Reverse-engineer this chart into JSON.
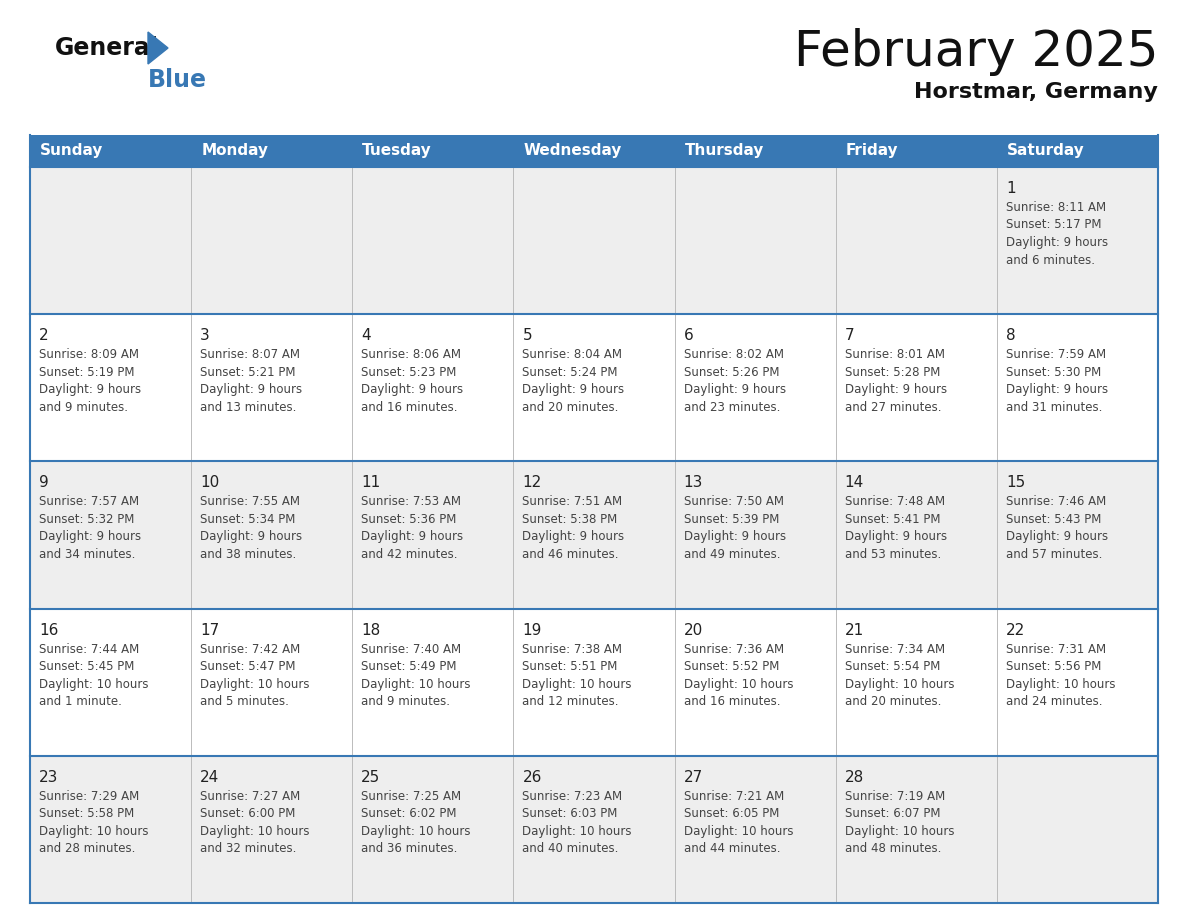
{
  "title": "February 2025",
  "subtitle": "Horstmar, Germany",
  "header_bg_color": "#3878b4",
  "header_text_color": "#ffffff",
  "day_names": [
    "Sunday",
    "Monday",
    "Tuesday",
    "Wednesday",
    "Thursday",
    "Friday",
    "Saturday"
  ],
  "row_bg_colors": [
    "#eeeeee",
    "#ffffff",
    "#eeeeee",
    "#ffffff",
    "#eeeeee"
  ],
  "cell_border_color": "#3878b4",
  "outer_border_color": "#3878b4",
  "cell_divider_color": "#bbbbbb",
  "date_text_color": "#222222",
  "info_text_color": "#444444",
  "calendar_data": [
    [
      {
        "day": null,
        "sunrise": null,
        "sunset": null,
        "daylight": null
      },
      {
        "day": null,
        "sunrise": null,
        "sunset": null,
        "daylight": null
      },
      {
        "day": null,
        "sunrise": null,
        "sunset": null,
        "daylight": null
      },
      {
        "day": null,
        "sunrise": null,
        "sunset": null,
        "daylight": null
      },
      {
        "day": null,
        "sunrise": null,
        "sunset": null,
        "daylight": null
      },
      {
        "day": null,
        "sunrise": null,
        "sunset": null,
        "daylight": null
      },
      {
        "day": 1,
        "sunrise": "8:11 AM",
        "sunset": "5:17 PM",
        "daylight": "9 hours and 6 minutes."
      }
    ],
    [
      {
        "day": 2,
        "sunrise": "8:09 AM",
        "sunset": "5:19 PM",
        "daylight": "9 hours and 9 minutes."
      },
      {
        "day": 3,
        "sunrise": "8:07 AM",
        "sunset": "5:21 PM",
        "daylight": "9 hours and 13 minutes."
      },
      {
        "day": 4,
        "sunrise": "8:06 AM",
        "sunset": "5:23 PM",
        "daylight": "9 hours and 16 minutes."
      },
      {
        "day": 5,
        "sunrise": "8:04 AM",
        "sunset": "5:24 PM",
        "daylight": "9 hours and 20 minutes."
      },
      {
        "day": 6,
        "sunrise": "8:02 AM",
        "sunset": "5:26 PM",
        "daylight": "9 hours and 23 minutes."
      },
      {
        "day": 7,
        "sunrise": "8:01 AM",
        "sunset": "5:28 PM",
        "daylight": "9 hours and 27 minutes."
      },
      {
        "day": 8,
        "sunrise": "7:59 AM",
        "sunset": "5:30 PM",
        "daylight": "9 hours and 31 minutes."
      }
    ],
    [
      {
        "day": 9,
        "sunrise": "7:57 AM",
        "sunset": "5:32 PM",
        "daylight": "9 hours and 34 minutes."
      },
      {
        "day": 10,
        "sunrise": "7:55 AM",
        "sunset": "5:34 PM",
        "daylight": "9 hours and 38 minutes."
      },
      {
        "day": 11,
        "sunrise": "7:53 AM",
        "sunset": "5:36 PM",
        "daylight": "9 hours and 42 minutes."
      },
      {
        "day": 12,
        "sunrise": "7:51 AM",
        "sunset": "5:38 PM",
        "daylight": "9 hours and 46 minutes."
      },
      {
        "day": 13,
        "sunrise": "7:50 AM",
        "sunset": "5:39 PM",
        "daylight": "9 hours and 49 minutes."
      },
      {
        "day": 14,
        "sunrise": "7:48 AM",
        "sunset": "5:41 PM",
        "daylight": "9 hours and 53 minutes."
      },
      {
        "day": 15,
        "sunrise": "7:46 AM",
        "sunset": "5:43 PM",
        "daylight": "9 hours and 57 minutes."
      }
    ],
    [
      {
        "day": 16,
        "sunrise": "7:44 AM",
        "sunset": "5:45 PM",
        "daylight": "10 hours and 1 minute."
      },
      {
        "day": 17,
        "sunrise": "7:42 AM",
        "sunset": "5:47 PM",
        "daylight": "10 hours and 5 minutes."
      },
      {
        "day": 18,
        "sunrise": "7:40 AM",
        "sunset": "5:49 PM",
        "daylight": "10 hours and 9 minutes."
      },
      {
        "day": 19,
        "sunrise": "7:38 AM",
        "sunset": "5:51 PM",
        "daylight": "10 hours and 12 minutes."
      },
      {
        "day": 20,
        "sunrise": "7:36 AM",
        "sunset": "5:52 PM",
        "daylight": "10 hours and 16 minutes."
      },
      {
        "day": 21,
        "sunrise": "7:34 AM",
        "sunset": "5:54 PM",
        "daylight": "10 hours and 20 minutes."
      },
      {
        "day": 22,
        "sunrise": "7:31 AM",
        "sunset": "5:56 PM",
        "daylight": "10 hours and 24 minutes."
      }
    ],
    [
      {
        "day": 23,
        "sunrise": "7:29 AM",
        "sunset": "5:58 PM",
        "daylight": "10 hours and 28 minutes."
      },
      {
        "day": 24,
        "sunrise": "7:27 AM",
        "sunset": "6:00 PM",
        "daylight": "10 hours and 32 minutes."
      },
      {
        "day": 25,
        "sunrise": "7:25 AM",
        "sunset": "6:02 PM",
        "daylight": "10 hours and 36 minutes."
      },
      {
        "day": 26,
        "sunrise": "7:23 AM",
        "sunset": "6:03 PM",
        "daylight": "10 hours and 40 minutes."
      },
      {
        "day": 27,
        "sunrise": "7:21 AM",
        "sunset": "6:05 PM",
        "daylight": "10 hours and 44 minutes."
      },
      {
        "day": 28,
        "sunrise": "7:19 AM",
        "sunset": "6:07 PM",
        "daylight": "10 hours and 48 minutes."
      },
      {
        "day": null,
        "sunrise": null,
        "sunset": null,
        "daylight": null
      }
    ]
  ]
}
